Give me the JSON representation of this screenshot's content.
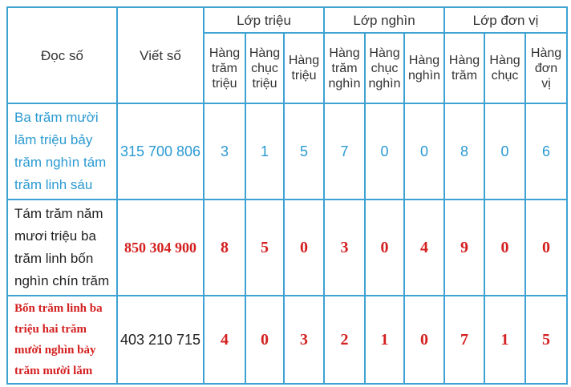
{
  "header": {
    "read_label": "Đọc số",
    "write_label": "Viết số",
    "classes": [
      "Lớp triệu",
      "Lớp nghìn",
      "Lớp đơn vị"
    ],
    "places": [
      [
        "Hàng",
        "trăm",
        "triệu"
      ],
      [
        "Hàng",
        "chục",
        "triệu"
      ],
      [
        "Hàng",
        "triệu"
      ],
      [
        "Hàng",
        "trăm",
        "nghìn"
      ],
      [
        "Hàng",
        "chục",
        "nghìn"
      ],
      [
        "Hàng",
        "nghìn"
      ],
      [
        "Hàng",
        "trăm"
      ],
      [
        "Hàng",
        "chục"
      ],
      [
        "Hàng",
        "đơn",
        "vị"
      ]
    ]
  },
  "rows": [
    {
      "read": "Ba trăm mười lăm triệu bảy trăm nghìn tám trăm linh sáu",
      "written": "315 700 806",
      "digits": [
        "3",
        "1",
        "5",
        "7",
        "0",
        "0",
        "8",
        "0",
        "6"
      ],
      "read_color": "#2b9ad2",
      "written_color": "#2b9ad2",
      "digit_color": "#2b9ad2"
    },
    {
      "read": "Tám trăm năm mươi triệu ba trăm linh bốn nghìn chín trăm",
      "written": "850 304 900",
      "digits": [
        "8",
        "5",
        "0",
        "3",
        "0",
        "4",
        "9",
        "0",
        "0"
      ],
      "read_color": "#222222",
      "written_color": "#d42020",
      "digit_color": "#d42020"
    },
    {
      "read": "Bốn trăm linh ba triệu hai trăm mười nghìn bảy trăm mười lăm",
      "written": "403 210 715",
      "digits": [
        "4",
        "0",
        "3",
        "2",
        "1",
        "0",
        "7",
        "1",
        "5"
      ],
      "read_color": "#d42020",
      "written_color": "#222222",
      "digit_color": "#d42020"
    }
  ]
}
